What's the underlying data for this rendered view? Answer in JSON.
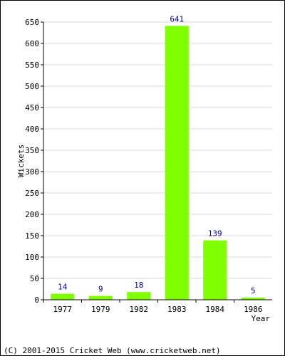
{
  "chart_data": {
    "type": "bar",
    "categories": [
      "1977",
      "1979",
      "1982",
      "1983",
      "1984",
      "1986"
    ],
    "values": [
      14,
      9,
      18,
      641,
      139,
      5
    ],
    "data_labels": [
      "14",
      "9",
      "18",
      "641",
      "139",
      "5"
    ],
    "xlabel": "Year",
    "ylabel": "Wickets",
    "ylim": [
      0,
      650
    ],
    "yticks": [
      0,
      50,
      100,
      150,
      200,
      250,
      300,
      350,
      400,
      450,
      500,
      550,
      600,
      650
    ],
    "grid": "horizontal",
    "bar_color": "#80ff00",
    "data_label_color": "#0000a0",
    "legend": "none"
  },
  "footer": {
    "copyright": "(C) 2001-2015 Cricket Web (www.cricketweb.net)"
  }
}
